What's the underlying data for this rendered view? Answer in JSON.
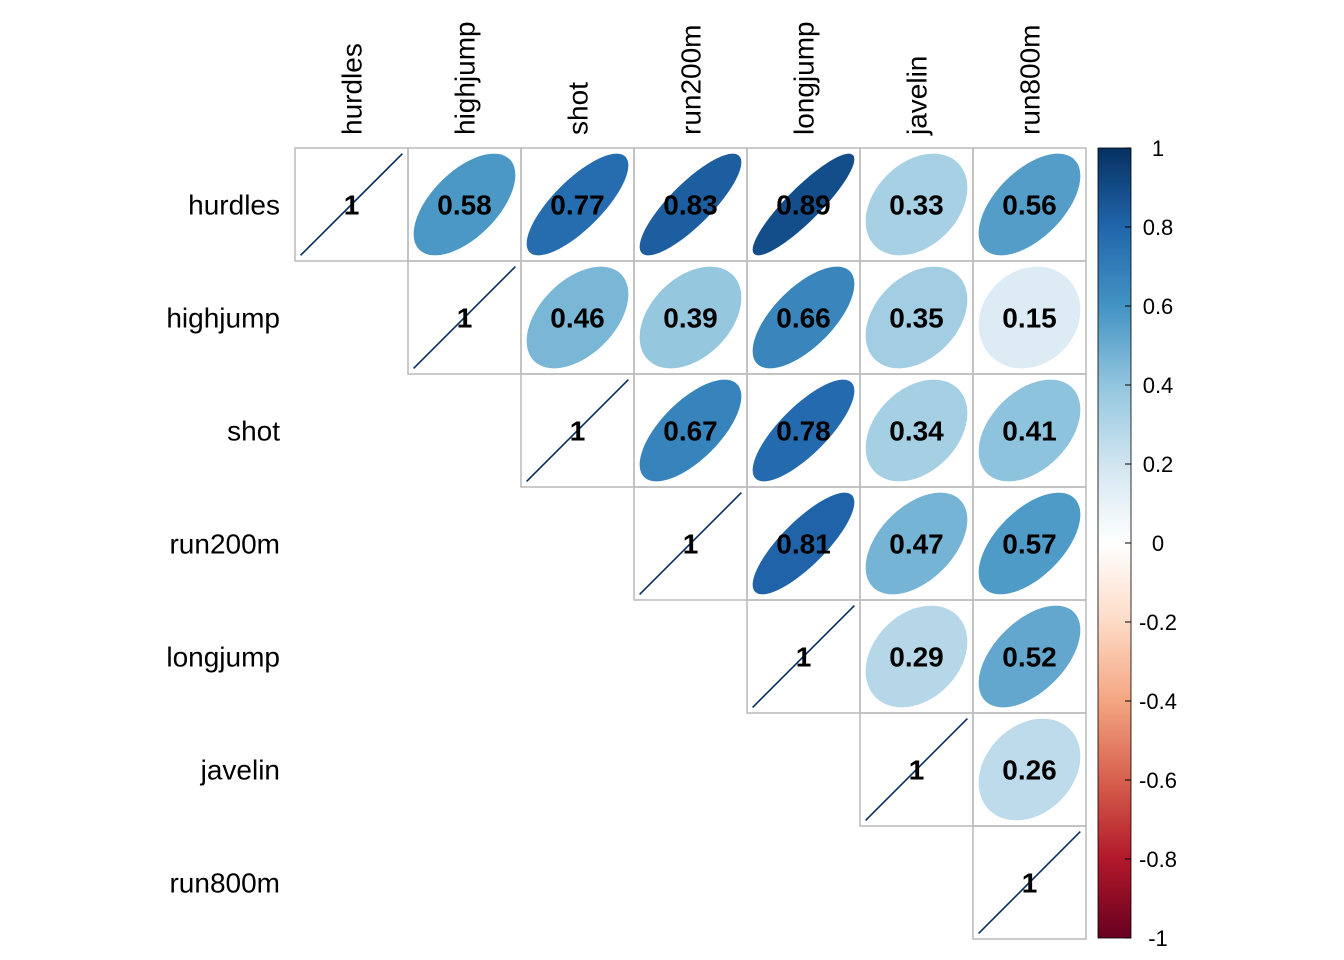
{
  "chart_data": {
    "type": "heatmap",
    "subtype": "correlation-matrix-upper-ellipse",
    "variables": [
      "hurdles",
      "highjump",
      "shot",
      "run200m",
      "longjump",
      "javelin",
      "run800m"
    ],
    "matrix": [
      [
        1,
        0.58,
        0.77,
        0.83,
        0.89,
        0.33,
        0.56
      ],
      [
        null,
        1,
        0.46,
        0.39,
        0.66,
        0.35,
        0.15
      ],
      [
        null,
        null,
        1,
        0.67,
        0.78,
        0.34,
        0.41
      ],
      [
        null,
        null,
        null,
        1,
        0.81,
        0.47,
        0.57
      ],
      [
        null,
        null,
        null,
        null,
        1,
        0.29,
        0.52
      ],
      [
        null,
        null,
        null,
        null,
        null,
        1,
        0.26
      ],
      [
        null,
        null,
        null,
        null,
        null,
        null,
        1
      ]
    ],
    "colorbar": {
      "range": [
        -1,
        1
      ],
      "ticks": [
        1,
        0.8,
        0.6,
        0.4,
        0.2,
        0,
        -0.2,
        -0.4,
        -0.6,
        -0.8,
        -1
      ],
      "tick_labels": [
        "1",
        "0.8",
        "0.6",
        "0.4",
        "0.2",
        "0",
        "-0.2",
        "-0.4",
        "-0.6",
        "-0.8",
        "-1"
      ],
      "colors": [
        "#67001F",
        "#B2182B",
        "#D6604D",
        "#F4A582",
        "#FDDBC7",
        "#FFFFFF",
        "#D1E5F0",
        "#92C5DE",
        "#4393C3",
        "#2166AC",
        "#053061"
      ]
    },
    "title": "",
    "xlabel": "",
    "ylabel": ""
  }
}
